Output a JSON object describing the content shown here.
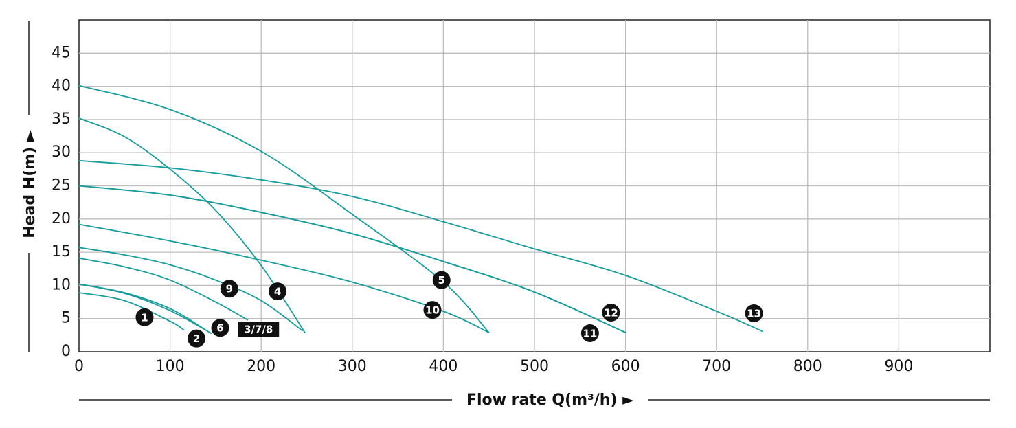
{
  "chart_data": {
    "type": "line",
    "title": "",
    "xlabel": "Flow rate Q(m³/h) ►",
    "ylabel": "Head H(m) ►",
    "xlim": [
      0,
      1000
    ],
    "ylim": [
      0,
      50
    ],
    "xticks": [
      0,
      100,
      200,
      300,
      400,
      500,
      600,
      700,
      800,
      900
    ],
    "yticks": [
      0,
      5,
      10,
      15,
      20,
      25,
      30,
      35,
      40,
      45
    ],
    "grid": true,
    "legend": "none",
    "line_color": "#179c9c",
    "label_color": "#111111",
    "series": [
      {
        "name": "1",
        "x": [
          0,
          50,
          100,
          115
        ],
        "y": [
          8.9,
          7.7,
          4.6,
          3.3
        ]
      },
      {
        "name": "2",
        "x": [
          0,
          50,
          100,
          140
        ],
        "y": [
          10.2,
          8.9,
          6.5,
          3.2
        ]
      },
      {
        "name": "3/7/8",
        "x": [
          0,
          50,
          100,
          145
        ],
        "y": [
          10.2,
          8.8,
          6.2,
          2.8
        ]
      },
      {
        "name": "6",
        "x": [
          0,
          50,
          100,
          150,
          185
        ],
        "y": [
          14.1,
          12.8,
          10.8,
          7.5,
          4.8
        ]
      },
      {
        "name": "9",
        "x": [
          0,
          50,
          100,
          150,
          200,
          245
        ],
        "y": [
          15.7,
          14.6,
          13.1,
          10.8,
          7.7,
          3.2
        ]
      },
      {
        "name": "4",
        "x": [
          0,
          50,
          100,
          150,
          200,
          248
        ],
        "y": [
          35.2,
          32.4,
          27.5,
          21.3,
          13.0,
          2.9
        ]
      },
      {
        "name": "10",
        "x": [
          0,
          100,
          200,
          300,
          400,
          450
        ],
        "y": [
          19.2,
          16.7,
          13.8,
          10.5,
          6.1,
          2.9
        ]
      },
      {
        "name": "5",
        "x": [
          0,
          100,
          200,
          300,
          400,
          450
        ],
        "y": [
          40.1,
          36.5,
          30.2,
          20.7,
          10.5,
          2.9
        ]
      },
      {
        "name": "11",
        "x": [
          0,
          100,
          200,
          300,
          400,
          500,
          600
        ],
        "y": [
          25.0,
          23.6,
          21.0,
          17.8,
          13.6,
          9.0,
          2.9
        ]
      },
      {
        "name": "12",
        "x": [
          0,
          100,
          200,
          300,
          400,
          500,
          600
        ],
        "y": [
          25.0,
          23.6,
          21.0,
          17.8,
          13.6,
          9.0,
          2.9
        ]
      },
      {
        "name": "13",
        "x": [
          0,
          100,
          200,
          300,
          400,
          500,
          600,
          700,
          750
        ],
        "y": [
          28.8,
          27.7,
          25.9,
          23.4,
          19.6,
          15.5,
          11.5,
          6.1,
          3.1
        ]
      }
    ],
    "annotations": [
      {
        "text": "1",
        "x": 72,
        "y": 5.2,
        "shape": "circle"
      },
      {
        "text": "2",
        "x": 129,
        "y": 2.0,
        "shape": "circle"
      },
      {
        "text": "6",
        "x": 155,
        "y": 3.6,
        "shape": "circle"
      },
      {
        "text": "3/7/8",
        "x": 197,
        "y": 3.4,
        "shape": "rect"
      },
      {
        "text": "9",
        "x": 165,
        "y": 9.5,
        "shape": "circle"
      },
      {
        "text": "4",
        "x": 218,
        "y": 9.1,
        "shape": "circle"
      },
      {
        "text": "5",
        "x": 398,
        "y": 10.8,
        "shape": "circle"
      },
      {
        "text": "10",
        "x": 388,
        "y": 6.3,
        "shape": "circle"
      },
      {
        "text": "11",
        "x": 561,
        "y": 2.8,
        "shape": "circle"
      },
      {
        "text": "12",
        "x": 584,
        "y": 5.9,
        "shape": "circle"
      },
      {
        "text": "13",
        "x": 741,
        "y": 5.8,
        "shape": "circle"
      }
    ]
  }
}
